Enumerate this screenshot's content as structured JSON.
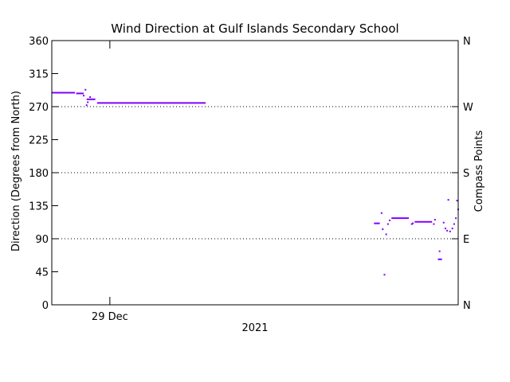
{
  "chart_data": {
    "type": "scatter",
    "title": "Wind Direction at Gulf Islands Secondary School",
    "xlabel": "2021",
    "ylabel": "Direction (Degrees from North)",
    "y2label": "Compass Points",
    "ylim": [
      0,
      360
    ],
    "xlim": [
      0,
      7.0
    ],
    "x_ticks": [
      {
        "x": 1.0,
        "label": "29 Dec"
      }
    ],
    "y_ticks": [
      0,
      45,
      90,
      135,
      180,
      225,
      270,
      315,
      360
    ],
    "y2_ticks": [
      {
        "y": 0,
        "label": "N"
      },
      {
        "y": 90,
        "label": "E"
      },
      {
        "y": 180,
        "label": "S"
      },
      {
        "y": 270,
        "label": "W"
      },
      {
        "y": 360,
        "label": "N"
      }
    ],
    "gridlines_y": [
      90,
      180,
      270
    ],
    "grid": "dotted horizontal lines at compass points",
    "series_color": "#8000ff",
    "segments": [
      {
        "x0": 0.0,
        "x1": 0.4,
        "y": 289
      },
      {
        "x0": 0.42,
        "x1": 0.55,
        "y": 288
      },
      {
        "x0": 0.6,
        "x1": 0.75,
        "y": 280
      },
      {
        "x0": 0.78,
        "x1": 2.65,
        "y": 275
      },
      {
        "x0": 5.55,
        "x1": 5.65,
        "y": 111
      },
      {
        "x0": 5.85,
        "x1": 6.15,
        "y": 118
      },
      {
        "x0": 6.25,
        "x1": 6.55,
        "y": 113
      },
      {
        "x0": 6.65,
        "x1": 6.72,
        "y": 62
      }
    ],
    "points": [
      [
        0.55,
        285
      ],
      [
        0.58,
        293
      ],
      [
        0.6,
        272
      ],
      [
        0.62,
        276
      ],
      [
        0.66,
        283
      ],
      [
        5.68,
        125
      ],
      [
        5.7,
        103
      ],
      [
        5.73,
        41
      ],
      [
        5.76,
        96
      ],
      [
        5.79,
        110
      ],
      [
        5.82,
        115
      ],
      [
        6.2,
        110
      ],
      [
        6.22,
        111
      ],
      [
        6.58,
        110
      ],
      [
        6.6,
        116
      ],
      [
        6.68,
        73
      ],
      [
        6.75,
        112
      ],
      [
        6.78,
        104
      ],
      [
        6.81,
        101
      ],
      [
        6.83,
        143
      ],
      [
        6.86,
        100
      ],
      [
        6.9,
        104
      ],
      [
        6.93,
        110
      ],
      [
        6.96,
        118
      ],
      [
        6.98,
        142
      ],
      [
        7.0,
        130
      ]
    ]
  }
}
